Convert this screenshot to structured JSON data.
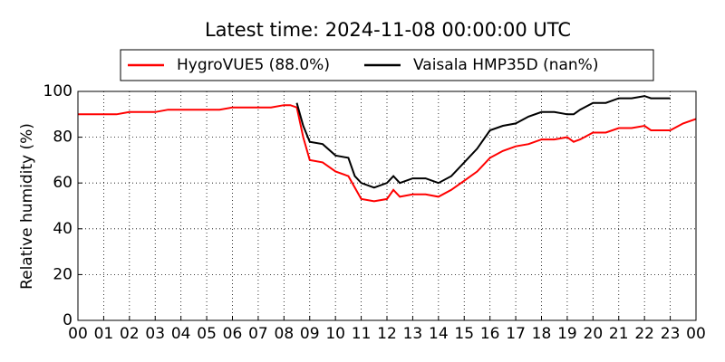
{
  "chart_data": {
    "type": "line",
    "title": "Latest time: 2024-11-08 00:00:00 UTC",
    "y_label": "Relative humidity (%)",
    "legend": "upper center",
    "grid": true,
    "x": [
      0,
      0.5,
      1,
      1.5,
      2,
      2.5,
      3,
      3.5,
      4,
      4.5,
      5,
      5.5,
      6,
      6.5,
      7,
      7.5,
      8,
      8.25,
      8.5,
      8.75,
      9,
      9.5,
      10,
      10.5,
      10.75,
      11,
      11.5,
      12,
      12.25,
      12.5,
      13,
      13.5,
      14,
      14.5,
      15,
      15.5,
      16,
      16.5,
      17,
      17.5,
      18,
      18.5,
      19,
      19.25,
      19.5,
      20,
      20.5,
      21,
      21.5,
      22,
      22.25,
      22.5,
      23,
      23.5,
      24
    ],
    "series": [
      {
        "name": "HygroVUE5 (88.0%)",
        "color": "#ff0000",
        "values": [
          90,
          90,
          90,
          90,
          91,
          91,
          91,
          92,
          92,
          92,
          92,
          92,
          93,
          93,
          93,
          93,
          94,
          94,
          93,
          80,
          70,
          69,
          65,
          63,
          58,
          53,
          52,
          53,
          57,
          54,
          55,
          55,
          54,
          57,
          61,
          65,
          71,
          74,
          76,
          77,
          79,
          79,
          80,
          78,
          79,
          82,
          82,
          84,
          84,
          85,
          83,
          83,
          83,
          86,
          88
        ]
      },
      {
        "name": "Vaisala HMP35D (nan%)",
        "color": "#000000",
        "values": [
          null,
          null,
          null,
          null,
          null,
          null,
          null,
          null,
          null,
          null,
          null,
          null,
          null,
          null,
          null,
          null,
          null,
          null,
          95,
          85,
          78,
          77,
          72,
          71,
          63,
          60,
          58,
          60,
          63,
          60,
          62,
          62,
          60,
          63,
          69,
          75,
          83,
          85,
          86,
          89,
          91,
          91,
          90,
          90,
          92,
          95,
          95,
          97,
          97,
          98,
          97,
          97,
          97,
          null,
          null
        ]
      }
    ],
    "xlim": [
      0,
      24
    ],
    "xticks": [
      {
        "value": 0,
        "label": "00"
      },
      {
        "value": 1,
        "label": "01"
      },
      {
        "value": 2,
        "label": "02"
      },
      {
        "value": 3,
        "label": "03"
      },
      {
        "value": 4,
        "label": "04"
      },
      {
        "value": 5,
        "label": "05"
      },
      {
        "value": 6,
        "label": "06"
      },
      {
        "value": 7,
        "label": "07"
      },
      {
        "value": 8,
        "label": "08"
      },
      {
        "value": 9,
        "label": "09"
      },
      {
        "value": 10,
        "label": "10"
      },
      {
        "value": 11,
        "label": "11"
      },
      {
        "value": 12,
        "label": "12"
      },
      {
        "value": 13,
        "label": "13"
      },
      {
        "value": 14,
        "label": "14"
      },
      {
        "value": 15,
        "label": "15"
      },
      {
        "value": 16,
        "label": "16"
      },
      {
        "value": 17,
        "label": "17"
      },
      {
        "value": 18,
        "label": "18"
      },
      {
        "value": 19,
        "label": "19"
      },
      {
        "value": 20,
        "label": "20"
      },
      {
        "value": 21,
        "label": "21"
      },
      {
        "value": 22,
        "label": "22"
      },
      {
        "value": 23,
        "label": "23"
      },
      {
        "value": 24,
        "label": "00"
      }
    ],
    "ylim": [
      0,
      100
    ],
    "yticks": [
      0,
      20,
      40,
      60,
      80,
      100
    ]
  }
}
